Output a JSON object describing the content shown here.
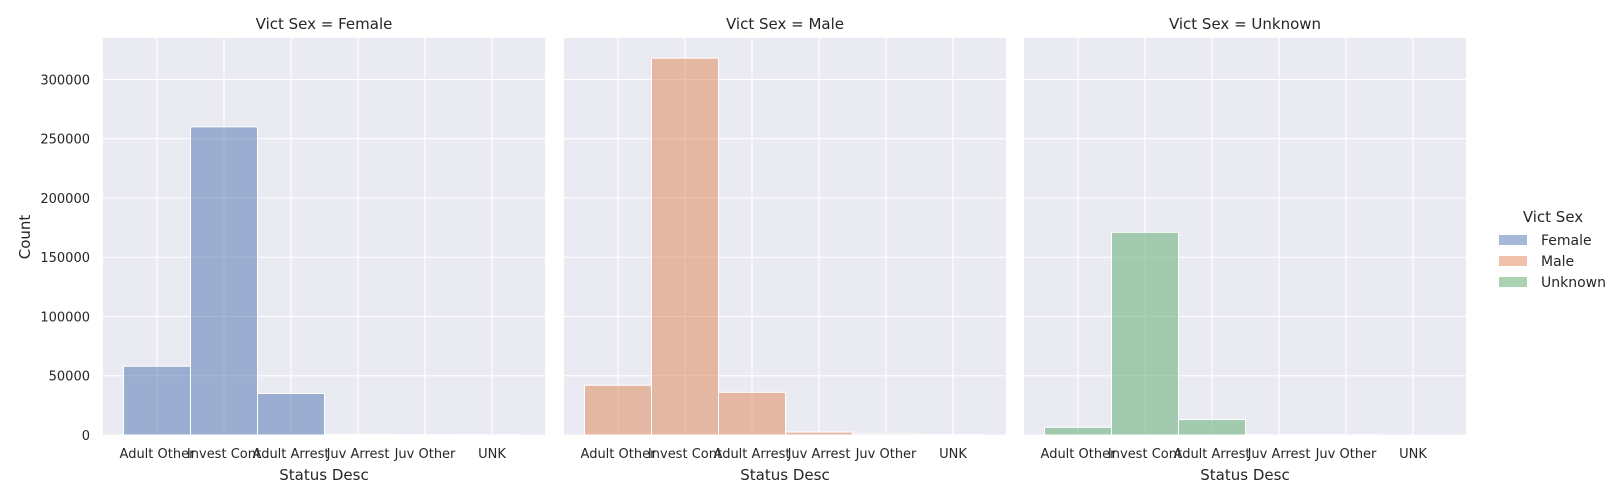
{
  "chart_data": {
    "type": "bar",
    "categories": [
      "Adult Other",
      "Invest Cont",
      "Adult Arrest",
      "Juv Arrest",
      "Juv Other",
      "UNK"
    ],
    "xlabel": "Status Desc",
    "ylabel": "Count",
    "ylim": [
      0,
      335000
    ],
    "yticks": [
      0,
      50000,
      100000,
      150000,
      200000,
      250000,
      300000
    ],
    "grid": true,
    "legend": {
      "title": "Vict Sex",
      "placement": "right",
      "entries": [
        "Female",
        "Male",
        "Unknown"
      ]
    },
    "panels": [
      {
        "title": "Vict Sex = Female",
        "series": "Female",
        "color": "#4c72b0",
        "values": [
          58000,
          260000,
          35000,
          600,
          400,
          100
        ]
      },
      {
        "title": "Vict Sex = Male",
        "series": "Male",
        "color": "#dd8452",
        "values": [
          42000,
          318000,
          36000,
          2500,
          1000,
          200
        ]
      },
      {
        "title": "Vict Sex = Unknown",
        "series": "Unknown",
        "color": "#55a868",
        "values": [
          6500,
          171000,
          13000,
          100,
          100,
          50
        ]
      }
    ]
  },
  "colors": {
    "plot_background": "#eaeaf2",
    "grid": "#ffffff"
  }
}
